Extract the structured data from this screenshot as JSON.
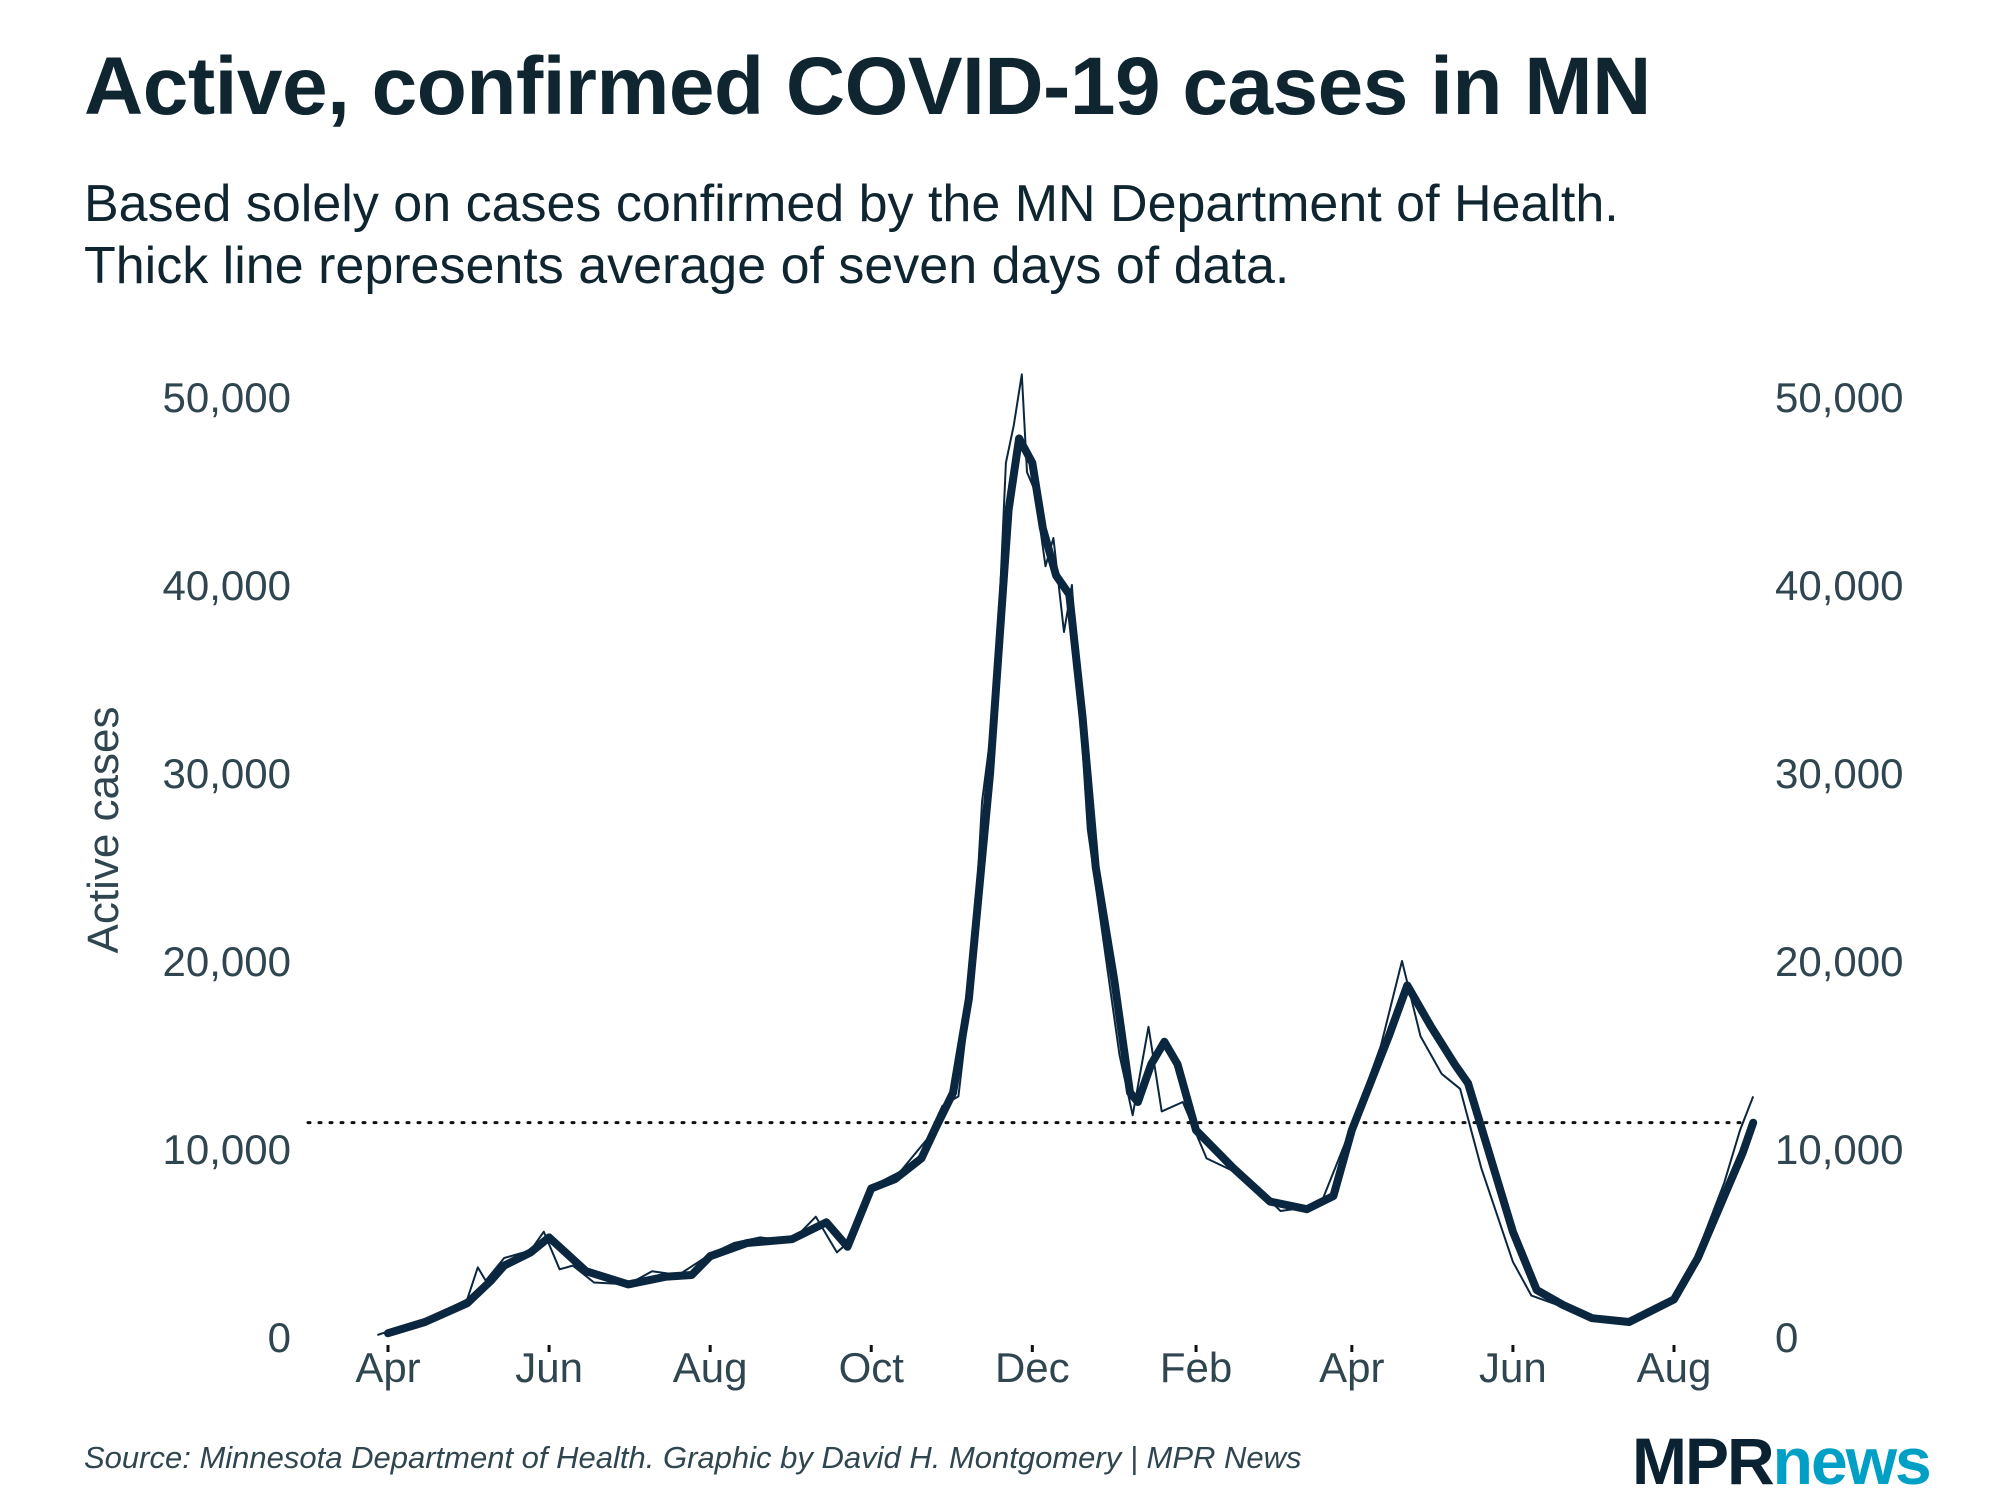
{
  "title": "Active, confirmed COVID-19 cases in MN",
  "subtitle_lines": [
    "Based solely on cases confirmed by the MN Department of Health.",
    "Thick line represents average of seven days of data."
  ],
  "source": "Source: Minnesota Department of Health. Graphic by David H. Montgomery | MPR News",
  "logo": {
    "part1": "MPR",
    "part2": "news",
    "colors": {
      "MPR": "#0b2232",
      "news": "#00a0c6"
    }
  },
  "chart_data": {
    "type": "line",
    "title": "Active, confirmed COVID-19 cases in MN",
    "ylabel": "Active cases",
    "xlabel": "",
    "ylim": [
      0,
      50000
    ],
    "xlim": [
      "2020-03-25",
      "2021-09-05"
    ],
    "yticks": [
      0,
      10000,
      20000,
      30000,
      40000,
      50000
    ],
    "ytick_labels": [
      "0",
      "10,000",
      "20,000",
      "30,000",
      "40,000",
      "50,000"
    ],
    "y_axis_sides": [
      "left",
      "right"
    ],
    "xticks": [
      "2020-04-01",
      "2020-06-01",
      "2020-08-01",
      "2020-10-01",
      "2020-12-01",
      "2021-02-01",
      "2021-04-01",
      "2021-06-01",
      "2021-08-01"
    ],
    "xtick_labels": [
      "Apr",
      "Jun",
      "Aug",
      "Oct",
      "Dec",
      "Feb",
      "Apr",
      "Jun",
      "Aug"
    ],
    "grid": false,
    "line_color": "#0b2740",
    "reference_line": {
      "value": 11400,
      "style": "dotted",
      "description_hidden": true
    },
    "series": [
      {
        "role": "seven-day average (thick)",
        "x": [
          "2020-04-01",
          "2020-04-15",
          "2020-05-01",
          "2020-05-10",
          "2020-05-15",
          "2020-05-25",
          "2020-06-01",
          "2020-06-08",
          "2020-06-15",
          "2020-07-01",
          "2020-07-15",
          "2020-07-25",
          "2020-08-01",
          "2020-08-15",
          "2020-09-01",
          "2020-09-14",
          "2020-09-22",
          "2020-10-01",
          "2020-10-10",
          "2020-10-20",
          "2020-10-25",
          "2020-11-01",
          "2020-11-07",
          "2020-11-15",
          "2020-11-22",
          "2020-11-26",
          "2020-12-01",
          "2020-12-05",
          "2020-12-10",
          "2020-12-15",
          "2020-12-20",
          "2020-12-25",
          "2021-01-01",
          "2021-01-07",
          "2021-01-10",
          "2021-01-15",
          "2021-01-20",
          "2021-01-25",
          "2021-02-01",
          "2021-02-15",
          "2021-03-01",
          "2021-03-15",
          "2021-03-25",
          "2021-04-01",
          "2021-04-15",
          "2021-04-22",
          "2021-05-01",
          "2021-05-10",
          "2021-05-15",
          "2021-06-01",
          "2021-06-10",
          "2021-06-20",
          "2021-07-01",
          "2021-07-15",
          "2021-08-01",
          "2021-08-10",
          "2021-08-20",
          "2021-08-27",
          "2021-08-31"
        ],
        "values": [
          200,
          800,
          1800,
          3000,
          3800,
          4500,
          5300,
          4400,
          3500,
          2800,
          3200,
          3300,
          4300,
          5000,
          5200,
          6100,
          4800,
          7900,
          8400,
          9500,
          11000,
          13000,
          18000,
          30000,
          44000,
          47800,
          46500,
          43000,
          40500,
          39500,
          33000,
          25000,
          19000,
          13000,
          12500,
          14500,
          15700,
          14500,
          11000,
          9000,
          7200,
          6800,
          7500,
          11000,
          16000,
          18700,
          16500,
          14500,
          13500,
          5600,
          2500,
          1700,
          1000,
          800,
          2000,
          4200,
          7500,
          9800,
          11400
        ]
      },
      {
        "role": "daily values (thin)",
        "x": [
          "2020-03-28",
          "2020-04-01",
          "2020-04-15",
          "2020-05-01",
          "2020-05-05",
          "2020-05-08",
          "2020-05-15",
          "2020-05-25",
          "2020-05-30",
          "2020-06-05",
          "2020-06-10",
          "2020-06-18",
          "2020-07-01",
          "2020-07-10",
          "2020-07-20",
          "2020-08-01",
          "2020-08-10",
          "2020-08-20",
          "2020-09-01",
          "2020-09-10",
          "2020-09-18",
          "2020-09-22",
          "2020-10-01",
          "2020-10-12",
          "2020-10-22",
          "2020-10-28",
          "2020-11-03",
          "2020-11-08",
          "2020-11-12",
          "2020-11-17",
          "2020-11-21",
          "2020-11-24",
          "2020-11-27",
          "2020-11-29",
          "2020-12-02",
          "2020-12-06",
          "2020-12-09",
          "2020-12-13",
          "2020-12-16",
          "2020-12-22",
          "2020-12-27",
          "2021-01-03",
          "2021-01-08",
          "2021-01-14",
          "2021-01-19",
          "2021-01-27",
          "2021-02-05",
          "2021-02-20",
          "2021-03-05",
          "2021-03-20",
          "2021-04-01",
          "2021-04-12",
          "2021-04-20",
          "2021-04-27",
          "2021-05-05",
          "2021-05-12",
          "2021-05-20",
          "2021-06-01",
          "2021-06-08",
          "2021-06-20",
          "2021-07-01",
          "2021-07-15",
          "2021-08-01",
          "2021-08-08",
          "2021-08-14",
          "2021-08-20",
          "2021-08-26",
          "2021-08-31"
        ],
        "values": [
          100,
          300,
          900,
          2000,
          3700,
          3000,
          4200,
          4600,
          5600,
          3600,
          3800,
          2900,
          2800,
          3500,
          3300,
          4400,
          5000,
          5300,
          5100,
          6400,
          4500,
          5000,
          8000,
          8800,
          10500,
          12300,
          12800,
          18800,
          28500,
          34000,
          46500,
          48500,
          51200,
          46000,
          45000,
          41000,
          42500,
          37500,
          40000,
          27000,
          22000,
          15000,
          11800,
          16500,
          12000,
          12500,
          9500,
          8500,
          6700,
          7000,
          11200,
          15500,
          20000,
          16000,
          14000,
          13200,
          9000,
          4000,
          2200,
          1600,
          900,
          700,
          2000,
          3800,
          6000,
          8200,
          11000,
          12800
        ]
      }
    ]
  }
}
